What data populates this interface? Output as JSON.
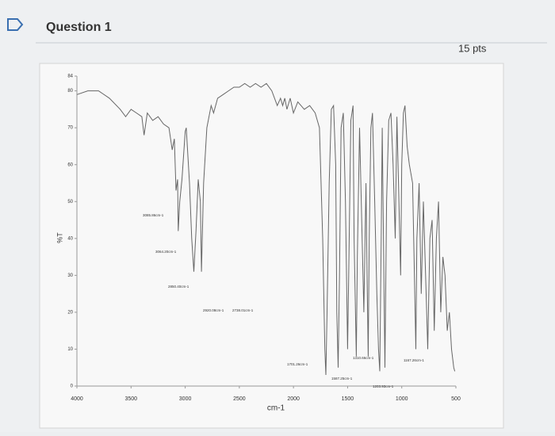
{
  "header": {
    "title": "Question 1",
    "points": "15 pts"
  },
  "chart_data": {
    "type": "line",
    "xlabel": "cm-1",
    "ylabel": "%T",
    "x": [
      4000,
      3900,
      3800,
      3700,
      3600,
      3550,
      3500,
      3450,
      3400,
      3380,
      3350,
      3300,
      3250,
      3200,
      3150,
      3120,
      3100,
      3085,
      3070,
      3064,
      3050,
      3030,
      3000,
      2990,
      2960,
      2940,
      2920,
      2900,
      2880,
      2860,
      2850,
      2830,
      2800,
      2760,
      2738,
      2700,
      2650,
      2600,
      2550,
      2500,
      2450,
      2400,
      2350,
      2300,
      2250,
      2200,
      2150,
      2120,
      2100,
      2080,
      2060,
      2030,
      2000,
      1960,
      1900,
      1850,
      1800,
      1760,
      1730,
      1710,
      1701,
      1690,
      1670,
      1650,
      1630,
      1610,
      1600,
      1587,
      1575,
      1560,
      1540,
      1520,
      1500,
      1490,
      1470,
      1450,
      1440,
      1420,
      1410,
      1390,
      1370,
      1350,
      1330,
      1320,
      1310,
      1300,
      1285,
      1270,
      1250,
      1230,
      1215,
      1203,
      1190,
      1180,
      1167,
      1155,
      1140,
      1120,
      1100,
      1080,
      1060,
      1045,
      1030,
      1010,
      1000,
      985,
      970,
      950,
      930,
      900,
      870,
      860,
      840,
      820,
      800,
      780,
      760,
      740,
      720,
      700,
      680,
      660,
      640,
      620,
      600,
      580,
      560,
      540,
      520,
      510
    ],
    "values": [
      79,
      80,
      80,
      78,
      75,
      73,
      75,
      74,
      73,
      68,
      74,
      72,
      73,
      71,
      70,
      64,
      67,
      53,
      56,
      42,
      50,
      56,
      69,
      70,
      55,
      40,
      31,
      42,
      56,
      50,
      31,
      55,
      70,
      76,
      74,
      78,
      79,
      80,
      81,
      81,
      82,
      81,
      82,
      81,
      82,
      80,
      76,
      78,
      76,
      78,
      75,
      78,
      74,
      77,
      75,
      76,
      74,
      70,
      40,
      10,
      3,
      20,
      55,
      75,
      76,
      60,
      20,
      5,
      30,
      70,
      74,
      50,
      10,
      30,
      72,
      76,
      40,
      8,
      35,
      70,
      45,
      20,
      55,
      30,
      8,
      40,
      70,
      74,
      50,
      25,
      10,
      4,
      40,
      70,
      35,
      5,
      50,
      72,
      74,
      60,
      40,
      73,
      55,
      30,
      60,
      74,
      76,
      65,
      60,
      55,
      10,
      40,
      55,
      25,
      50,
      30,
      10,
      40,
      45,
      15,
      40,
      50,
      20,
      35,
      30,
      15,
      20,
      10,
      5,
      4
    ],
    "color": "#666666",
    "xlim": [
      4000,
      500
    ],
    "xticks": [
      4000,
      3500,
      3000,
      2500,
      2000,
      1500,
      1000,
      500
    ],
    "ylim": [
      0,
      84
    ],
    "yticks": [
      0,
      10,
      20,
      30,
      40,
      50,
      60,
      70,
      80,
      84
    ],
    "annotations": [
      "3085.86cm-1",
      "3064.20cm-1",
      "2850.40cm-1",
      "2920.08cm-1",
      "2738.01cm-1",
      "1701.26cm-1",
      "1587.25cm-1",
      "1310.66cm-1",
      "1203.93cm-1",
      "1167.26cm-1"
    ]
  }
}
